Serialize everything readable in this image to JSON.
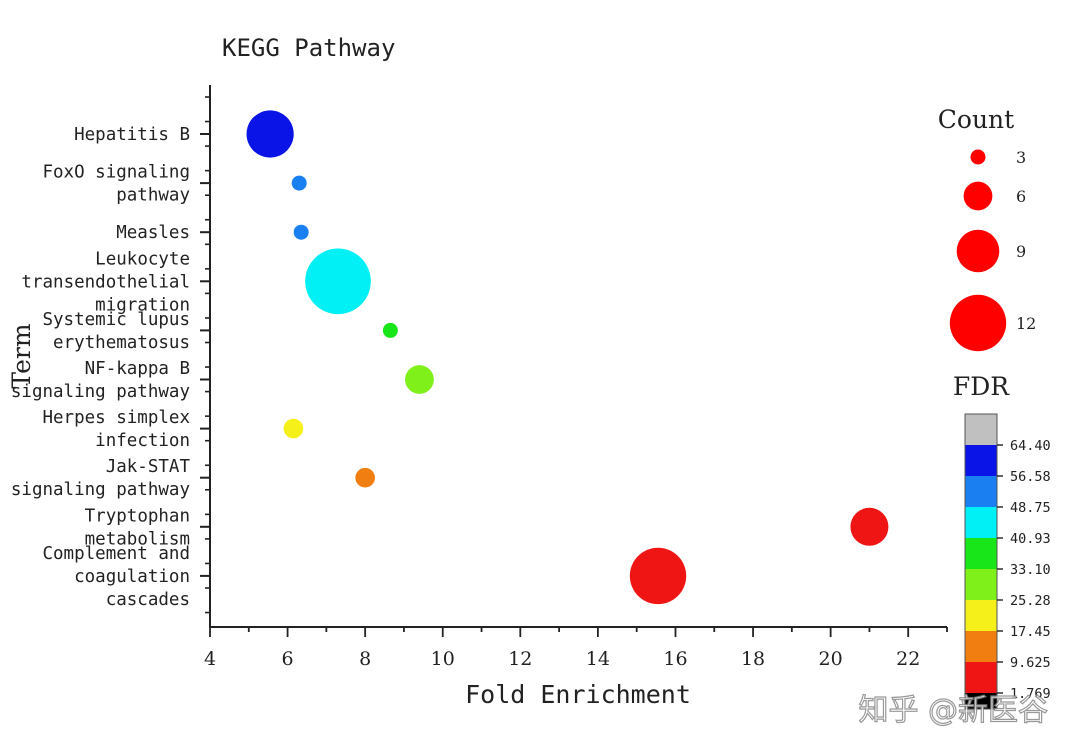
{
  "chart_data": {
    "type": "scatter",
    "title": "KEGG Pathway",
    "xlabel": "Fold Enrichment",
    "ylabel": "Term",
    "xlim": [
      4,
      23
    ],
    "x_ticks": [
      "4",
      "6",
      "8",
      "10",
      "12",
      "14",
      "16",
      "18",
      "20",
      "22"
    ],
    "grid": false,
    "terms": [
      {
        "label": [
          "Hepatitis B"
        ],
        "x": 5.55,
        "count": 10,
        "color": "#0a14e6"
      },
      {
        "label": [
          "FoxO signaling",
          "pathway"
        ],
        "x": 6.3,
        "count": 3,
        "color": "#1a7ff0"
      },
      {
        "label": [
          "Measles"
        ],
        "x": 6.35,
        "count": 3,
        "color": "#1a7ff0"
      },
      {
        "label": [
          "Leukocyte",
          "transendothelial",
          "migration"
        ],
        "x": 7.3,
        "count": 14,
        "color": "#00f0f5"
      },
      {
        "label": [
          "Systemic lupus",
          "erythematosus"
        ],
        "x": 8.65,
        "count": 3,
        "color": "#19e619"
      },
      {
        "label": [
          "NF-kappa B",
          "signaling pathway"
        ],
        "x": 9.4,
        "count": 6,
        "color": "#80f01a"
      },
      {
        "label": [
          "Herpes simplex",
          "infection"
        ],
        "x": 6.15,
        "count": 4,
        "color": "#f5f01a"
      },
      {
        "label": [
          "Jak-STAT",
          "signaling pathway"
        ],
        "x": 8.0,
        "count": 4,
        "color": "#f07e10"
      },
      {
        "label": [
          "Tryptophan",
          "metabolism"
        ],
        "x": 21.0,
        "count": 8,
        "color": "#f01515"
      },
      {
        "label": [
          "Complement and",
          "coagulation",
          "cascades"
        ],
        "x": 15.55,
        "count": 12,
        "color": "#f01515"
      }
    ],
    "size_legend": {
      "title": "Count",
      "color": "#ff0000",
      "entries": [
        {
          "label": "3",
          "count": 3
        },
        {
          "label": "6",
          "count": 6
        },
        {
          "label": "9",
          "count": 9
        },
        {
          "label": "12",
          "count": 12
        }
      ]
    },
    "color_legend": {
      "title": "FDR",
      "swatches": [
        "#c0c0c0",
        "#0a14e6",
        "#1a7ff0",
        "#00f0f5",
        "#19e619",
        "#80f01a",
        "#f5f01a",
        "#f07e10",
        "#f01515",
        "#000000"
      ],
      "tick_labels": [
        "64.40",
        "56.58",
        "48.75",
        "40.93",
        "33.10",
        "25.28",
        "17.45",
        "9.625",
        "1.769"
      ]
    }
  },
  "watermark": "知乎 @新医谷"
}
